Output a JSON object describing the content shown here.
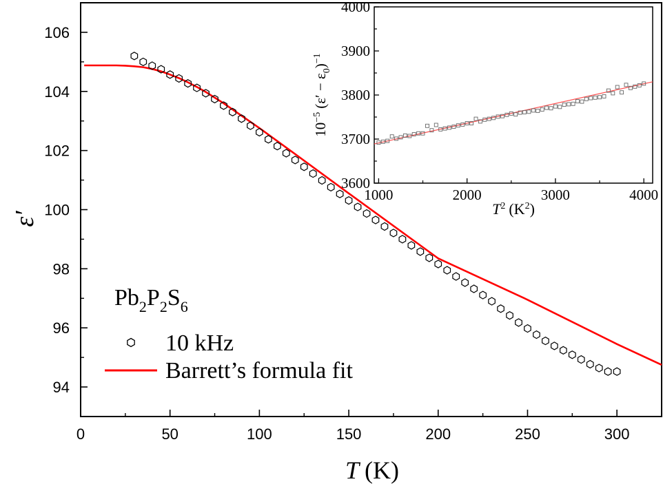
{
  "chart_data": [
    {
      "type": "scatter",
      "xlabel_symbol": "T",
      "xlabel_unit": "(K)",
      "ylabel": "ε′",
      "xlim": [
        0,
        325
      ],
      "ylim": [
        93,
        107
      ],
      "xticks": [
        "0",
        "50",
        "100",
        "150",
        "200",
        "250",
        "300"
      ],
      "yticks": [
        "94",
        "96",
        "98",
        "100",
        "102",
        "104",
        "106"
      ],
      "annotation": {
        "base": "Pb",
        "sub1": "2",
        "mid": "P",
        "sub2": "2",
        "end": "S",
        "sub3": "6"
      },
      "legend": {
        "placement": "bottom-left",
        "entries": [
          "10 kHz",
          "Barrett’s formula fit"
        ]
      },
      "series": [
        {
          "name": "10 kHz",
          "style": "hexagon-open",
          "color": "#000000",
          "x": [
            30,
            35,
            40,
            45,
            50,
            55,
            60,
            65,
            70,
            75,
            80,
            85,
            90,
            95,
            100,
            105,
            110,
            115,
            120,
            125,
            130,
            135,
            140,
            145,
            150,
            155,
            160,
            165,
            170,
            175,
            180,
            185,
            190,
            195,
            200,
            205,
            210,
            215,
            220,
            225,
            230,
            235,
            240,
            245,
            250,
            255,
            260,
            265,
            270,
            275,
            280,
            285,
            290,
            295,
            300
          ],
          "y": [
            105.2,
            105.0,
            104.87,
            104.75,
            104.57,
            104.44,
            104.27,
            104.12,
            103.94,
            103.74,
            103.52,
            103.3,
            103.08,
            102.84,
            102.62,
            102.38,
            102.15,
            101.91,
            101.68,
            101.45,
            101.22,
            100.99,
            100.76,
            100.53,
            100.31,
            100.09,
            99.87,
            99.65,
            99.43,
            99.21,
            99.0,
            98.79,
            98.58,
            98.37,
            98.16,
            97.95,
            97.74,
            97.53,
            97.32,
            97.11,
            96.9,
            96.65,
            96.42,
            96.18,
            95.98,
            95.77,
            95.56,
            95.39,
            95.24,
            95.09,
            94.93,
            94.77,
            94.64,
            94.52,
            94.52
          ]
        },
        {
          "name": "Barrett’s formula fit",
          "style": "line",
          "color": "#ff0000",
          "x": [
            2,
            10,
            20,
            25,
            30,
            35,
            40,
            45,
            50,
            55,
            60,
            65,
            70,
            80,
            90,
            100,
            120,
            150,
            200,
            250,
            300,
            325
          ],
          "y": [
            104.88,
            104.88,
            104.88,
            104.87,
            104.85,
            104.82,
            104.76,
            104.68,
            104.57,
            104.45,
            104.31,
            104.15,
            103.98,
            103.6,
            103.18,
            102.76,
            101.88,
            100.55,
            98.35,
            96.95,
            95.45,
            94.75
          ]
        }
      ]
    },
    {
      "type": "scatter",
      "xlabel_symbol": "T",
      "xlabel_sup": "2",
      "xlabel_unit": "(K",
      "xlabel_unit_sup": "2",
      "xlabel_close": ")",
      "ylabel_pre": "10",
      "ylabel_pre_sup": "−5",
      "ylabel_mid": "(ε′ − ε",
      "ylabel_sub": "0",
      "ylabel_post": ")",
      "ylabel_post_sup": "−1",
      "xlim": [
        950,
        4100
      ],
      "ylim": [
        3600,
        4000
      ],
      "xticks": [
        "1000",
        "2000",
        "3000",
        "4000"
      ],
      "yticks": [
        "3600",
        "3700",
        "3800",
        "3900",
        "4000"
      ],
      "series": [
        {
          "name": "data",
          "style": "square-open",
          "color": "#666666",
          "x": [
            1000,
            1050,
            1100,
            1150,
            1200,
            1250,
            1300,
            1350,
            1400,
            1450,
            1500,
            1550,
            1600,
            1650,
            1700,
            1750,
            1800,
            1850,
            1900,
            1950,
            2000,
            2050,
            2100,
            2150,
            2200,
            2250,
            2300,
            2350,
            2400,
            2450,
            2500,
            2550,
            2600,
            2650,
            2700,
            2750,
            2800,
            2850,
            2900,
            2950,
            3000,
            3050,
            3100,
            3150,
            3200,
            3250,
            3300,
            3350,
            3400,
            3450,
            3500,
            3550,
            3600,
            3650,
            3700,
            3750,
            3800,
            3850,
            3900,
            3950,
            4000
          ],
          "y": [
            3692,
            3694,
            3696,
            3706,
            3701,
            3704,
            3708,
            3707,
            3711,
            3713,
            3713,
            3730,
            3720,
            3732,
            3722,
            3724,
            3726,
            3728,
            3731,
            3733,
            3736,
            3736,
            3746,
            3740,
            3744,
            3746,
            3748,
            3751,
            3752,
            3755,
            3758,
            3756,
            3760,
            3761,
            3762,
            3765,
            3764,
            3767,
            3771,
            3770,
            3774,
            3773,
            3778,
            3779,
            3780,
            3786,
            3785,
            3791,
            3793,
            3794,
            3795,
            3797,
            3810,
            3804,
            3818,
            3806,
            3823,
            3816,
            3819,
            3822,
            3826
          ]
        },
        {
          "name": "fit",
          "style": "line",
          "color": "#ff4d4d",
          "x": [
            950,
            4100
          ],
          "y": [
            3689,
            3830
          ]
        }
      ]
    }
  ]
}
